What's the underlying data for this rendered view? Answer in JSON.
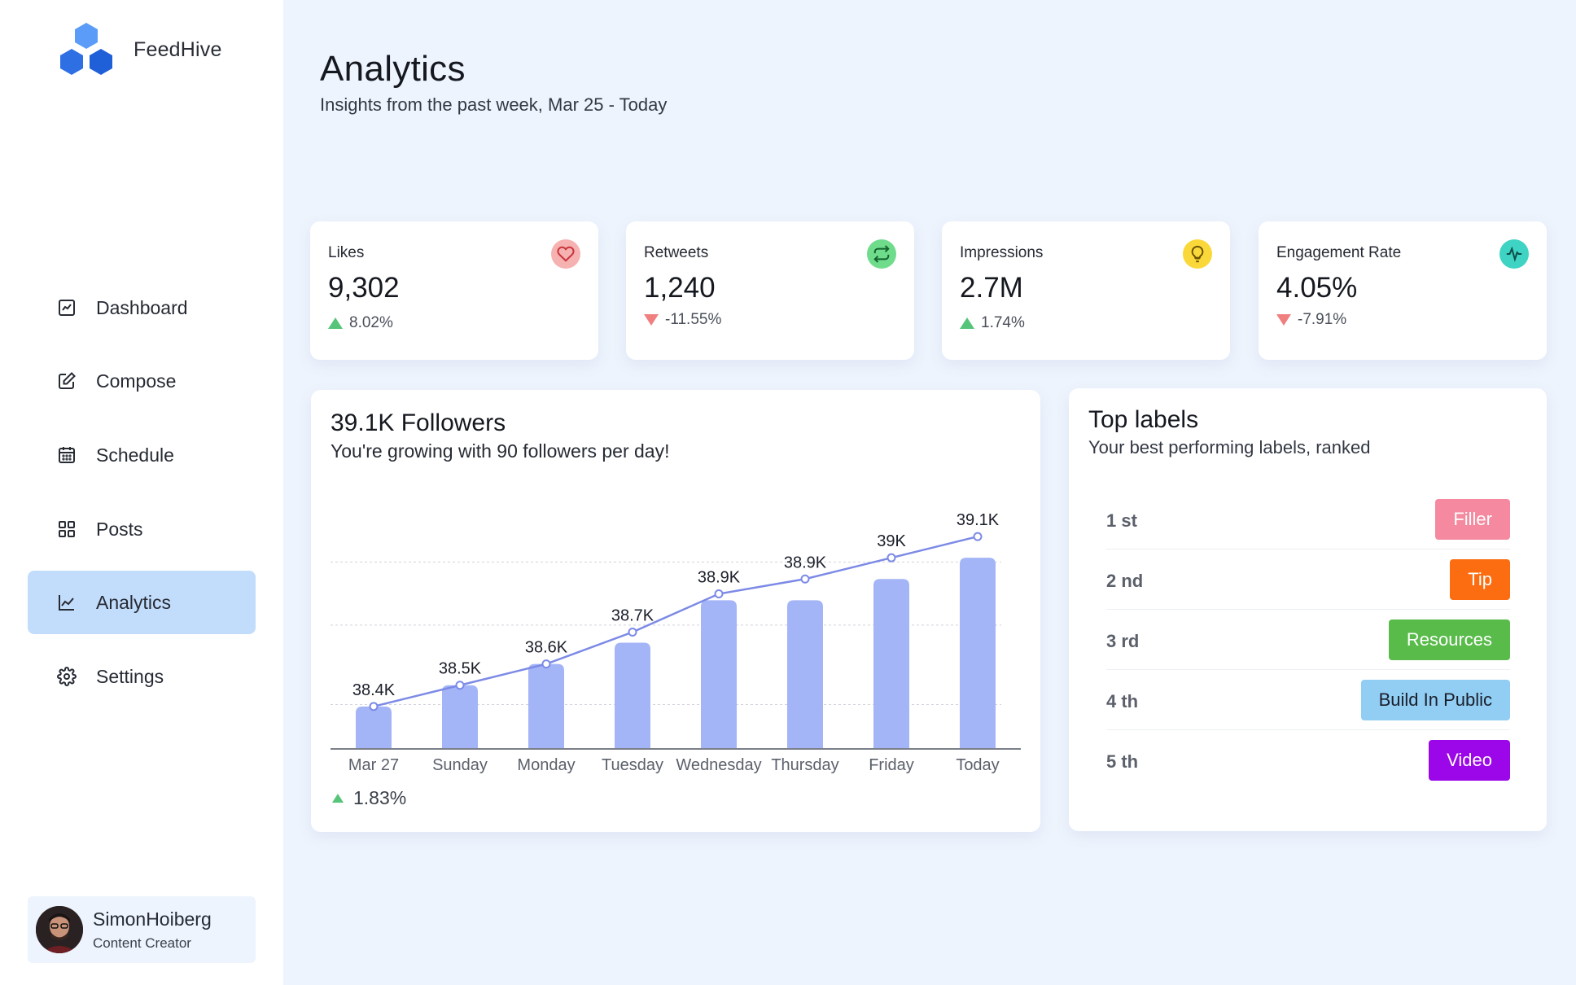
{
  "brand": {
    "name": "FeedHive",
    "logo_colors": [
      "#5a9cf8",
      "#2f6fe4",
      "#1f5fd8"
    ]
  },
  "sidebar": {
    "items": [
      {
        "label": "Dashboard",
        "icon": "chart-box-icon",
        "active": false
      },
      {
        "label": "Compose",
        "icon": "edit-icon",
        "active": false
      },
      {
        "label": "Schedule",
        "icon": "calendar-icon",
        "active": false
      },
      {
        "label": "Posts",
        "icon": "grid-icon",
        "active": false
      },
      {
        "label": "Analytics",
        "icon": "line-chart-icon",
        "active": true
      },
      {
        "label": "Settings",
        "icon": "gear-icon",
        "active": false
      }
    ]
  },
  "profile": {
    "name": "SimonHoiberg",
    "role": "Content Creator"
  },
  "header": {
    "title": "Analytics",
    "subtitle": "Insights from the past week, Mar 25 - Today"
  },
  "stats": [
    {
      "label": "Likes",
      "value": "9,302",
      "change": "8.02%",
      "direction": "up",
      "icon": "heart-icon",
      "icon_bg": "#f6b1b1",
      "icon_color": "#c9353d"
    },
    {
      "label": "Retweets",
      "value": "1,240",
      "change": "-11.55%",
      "direction": "down",
      "icon": "retweet-icon",
      "icon_bg": "#6fdc8c",
      "icon_color": "#12632c"
    },
    {
      "label": "Impressions",
      "value": "2.7M",
      "change": "1.74%",
      "direction": "up",
      "icon": "lightbulb-icon",
      "icon_bg": "#fbd83a",
      "icon_color": "#6b5200"
    },
    {
      "label": "Engagement Rate",
      "value": "4.05%",
      "change": "-7.91%",
      "direction": "down",
      "icon": "pulse-icon",
      "icon_bg": "#3fd3c3",
      "icon_color": "#0d4f4a"
    }
  ],
  "followers": {
    "title": "39.1K Followers",
    "subtitle": "You're growing with 90 followers per day!",
    "change": "1.83%",
    "direction": "up"
  },
  "chart_data": {
    "type": "bar",
    "categories": [
      "Mar 27",
      "Sunday",
      "Monday",
      "Tuesday",
      "Wednesday",
      "Thursday",
      "Friday",
      "Today"
    ],
    "values": [
      38.4,
      38.5,
      38.6,
      38.7,
      38.9,
      38.9,
      39.0,
      39.1
    ],
    "data_labels": [
      "38.4K",
      "38.5K",
      "38.6K",
      "38.7K",
      "38.9K",
      "38.9K",
      "39K",
      "39.1K"
    ],
    "line_values": [
      38.4,
      38.5,
      38.6,
      38.75,
      38.93,
      39.0,
      39.1,
      39.2
    ],
    "ylim": [
      38.2,
      39.3
    ],
    "grid": true,
    "legend": "none",
    "bar_color": "#a3b5f7",
    "line_color": "#7c8ae6",
    "title": "",
    "xlabel": "",
    "ylabel": ""
  },
  "labels_panel": {
    "title": "Top labels",
    "subtitle": "Your best performing labels, ranked",
    "rows": [
      {
        "rank": "1 st",
        "label": "Filler",
        "color": "#f4899f"
      },
      {
        "rank": "2 nd",
        "label": "Tip",
        "color": "#fb6d10"
      },
      {
        "rank": "3 rd",
        "label": "Resources",
        "color": "#58bb4a"
      },
      {
        "rank": "4 th",
        "label": "Build In Public",
        "color": "#92cdf4",
        "text_color": "#1b1f2a"
      },
      {
        "rank": "5 th",
        "label": "Video",
        "color": "#9b07e8"
      }
    ]
  }
}
